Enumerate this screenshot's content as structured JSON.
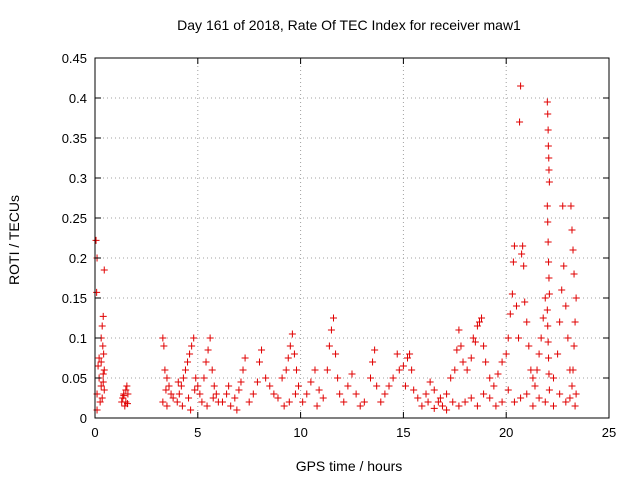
{
  "chart_data": {
    "type": "scatter",
    "title": "Day 161 of 2018, Rate Of TEC Index for receiver maw1",
    "xlabel": "GPS time / hours",
    "ylabel": "ROTI / TECUs",
    "xlim": [
      0,
      25
    ],
    "ylim": [
      0,
      0.45
    ],
    "x_ticks": [
      0,
      5,
      10,
      15,
      20,
      25
    ],
    "x_tick_labels": [
      "0",
      "5",
      "10",
      "15",
      "20",
      "25"
    ],
    "y_ticks": [
      0,
      0.05,
      0.1,
      0.15,
      0.2,
      0.25,
      0.3,
      0.35,
      0.4,
      0.45
    ],
    "y_tick_labels": [
      "0",
      "0.05",
      "0.1",
      "0.15",
      "0.2",
      "0.25",
      "0.3",
      "0.35",
      "0.4",
      "0.45"
    ],
    "grid": true,
    "marker": "+",
    "color": "#e00000",
    "series": [
      {
        "name": "ROTI",
        "points": [
          [
            0.05,
            0.222
          ],
          [
            0.1,
            0.2
          ],
          [
            0.08,
            0.157
          ],
          [
            0.45,
            0.185
          ],
          [
            0.4,
            0.127
          ],
          [
            0.35,
            0.115
          ],
          [
            0.3,
            0.1
          ],
          [
            0.38,
            0.09
          ],
          [
            0.42,
            0.08
          ],
          [
            0.3,
            0.07
          ],
          [
            0.15,
            0.065
          ],
          [
            0.2,
            0.05
          ],
          [
            0.1,
            0.03
          ],
          [
            0.3,
            0.04
          ],
          [
            0.4,
            0.055
          ],
          [
            0.45,
            0.06
          ],
          [
            0.25,
            0.02
          ],
          [
            0.1,
            0.01
          ],
          [
            0.35,
            0.025
          ],
          [
            0.45,
            0.035
          ],
          [
            0.2,
            0.075
          ],
          [
            0.4,
            0.045
          ],
          [
            1.3,
            0.02
          ],
          [
            1.35,
            0.025
          ],
          [
            1.4,
            0.03
          ],
          [
            1.45,
            0.015
          ],
          [
            1.5,
            0.035
          ],
          [
            1.55,
            0.04
          ],
          [
            1.6,
            0.03
          ],
          [
            1.5,
            0.02
          ],
          [
            1.4,
            0.028
          ],
          [
            1.58,
            0.018
          ],
          [
            3.3,
            0.1
          ],
          [
            3.35,
            0.09
          ],
          [
            3.4,
            0.06
          ],
          [
            3.5,
            0.05
          ],
          [
            3.6,
            0.04
          ],
          [
            3.7,
            0.03
          ],
          [
            3.3,
            0.02
          ],
          [
            3.5,
            0.015
          ],
          [
            3.8,
            0.025
          ],
          [
            3.45,
            0.035
          ],
          [
            4.0,
            0.02
          ],
          [
            4.1,
            0.03
          ],
          [
            4.2,
            0.04
          ],
          [
            4.3,
            0.05
          ],
          [
            4.4,
            0.06
          ],
          [
            4.5,
            0.07
          ],
          [
            4.6,
            0.08
          ],
          [
            4.7,
            0.09
          ],
          [
            4.8,
            0.1
          ],
          [
            4.9,
            0.05
          ],
          [
            5.0,
            0.04
          ],
          [
            5.1,
            0.03
          ],
          [
            5.2,
            0.02
          ],
          [
            4.25,
            0.015
          ],
          [
            4.55,
            0.025
          ],
          [
            4.85,
            0.035
          ],
          [
            4.05,
            0.045
          ],
          [
            4.65,
            0.01
          ],
          [
            5.3,
            0.05
          ],
          [
            5.4,
            0.07
          ],
          [
            5.5,
            0.085
          ],
          [
            5.6,
            0.1
          ],
          [
            5.7,
            0.06
          ],
          [
            5.8,
            0.04
          ],
          [
            5.9,
            0.03
          ],
          [
            6.0,
            0.02
          ],
          [
            5.45,
            0.015
          ],
          [
            5.75,
            0.025
          ],
          [
            6.2,
            0.02
          ],
          [
            6.4,
            0.03
          ],
          [
            6.6,
            0.015
          ],
          [
            6.8,
            0.025
          ],
          [
            7.0,
            0.035
          ],
          [
            7.2,
            0.06
          ],
          [
            7.3,
            0.075
          ],
          [
            7.1,
            0.045
          ],
          [
            6.9,
            0.01
          ],
          [
            6.5,
            0.04
          ],
          [
            7.5,
            0.02
          ],
          [
            7.7,
            0.03
          ],
          [
            7.9,
            0.045
          ],
          [
            8.1,
            0.085
          ],
          [
            8.0,
            0.07
          ],
          [
            8.3,
            0.05
          ],
          [
            8.5,
            0.04
          ],
          [
            8.7,
            0.03
          ],
          [
            8.9,
            0.025
          ],
          [
            9.1,
            0.05
          ],
          [
            9.3,
            0.06
          ],
          [
            9.4,
            0.075
          ],
          [
            9.5,
            0.09
          ],
          [
            9.6,
            0.105
          ],
          [
            9.7,
            0.08
          ],
          [
            9.8,
            0.06
          ],
          [
            9.9,
            0.04
          ],
          [
            9.45,
            0.02
          ],
          [
            9.75,
            0.03
          ],
          [
            9.2,
            0.015
          ],
          [
            10.1,
            0.02
          ],
          [
            10.3,
            0.03
          ],
          [
            10.5,
            0.045
          ],
          [
            10.7,
            0.06
          ],
          [
            10.9,
            0.035
          ],
          [
            11.1,
            0.025
          ],
          [
            11.3,
            0.06
          ],
          [
            11.4,
            0.09
          ],
          [
            11.5,
            0.11
          ],
          [
            11.6,
            0.125
          ],
          [
            11.7,
            0.08
          ],
          [
            11.8,
            0.05
          ],
          [
            11.9,
            0.03
          ],
          [
            12.1,
            0.02
          ],
          [
            12.3,
            0.04
          ],
          [
            12.5,
            0.055
          ],
          [
            12.7,
            0.03
          ],
          [
            12.9,
            0.015
          ],
          [
            13.1,
            0.02
          ],
          [
            10.8,
            0.015
          ],
          [
            13.4,
            0.05
          ],
          [
            13.5,
            0.07
          ],
          [
            13.6,
            0.085
          ],
          [
            13.7,
            0.04
          ],
          [
            13.9,
            0.02
          ],
          [
            14.1,
            0.03
          ],
          [
            14.3,
            0.04
          ],
          [
            14.5,
            0.05
          ],
          [
            14.7,
            0.08
          ],
          [
            14.8,
            0.06
          ],
          [
            15.0,
            0.065
          ],
          [
            15.1,
            0.04
          ],
          [
            15.2,
            0.075
          ],
          [
            15.3,
            0.08
          ],
          [
            15.4,
            0.06
          ],
          [
            15.5,
            0.035
          ],
          [
            15.7,
            0.025
          ],
          [
            15.9,
            0.015
          ],
          [
            16.1,
            0.03
          ],
          [
            16.3,
            0.045
          ],
          [
            16.5,
            0.035
          ],
          [
            16.7,
            0.02
          ],
          [
            16.9,
            0.015
          ],
          [
            17.1,
            0.03
          ],
          [
            17.3,
            0.05
          ],
          [
            17.5,
            0.06
          ],
          [
            17.6,
            0.085
          ],
          [
            17.7,
            0.11
          ],
          [
            17.8,
            0.09
          ],
          [
            17.9,
            0.07
          ],
          [
            18.1,
            0.06
          ],
          [
            18.3,
            0.075
          ],
          [
            18.4,
            0.1
          ],
          [
            18.5,
            0.095
          ],
          [
            18.6,
            0.115
          ],
          [
            18.7,
            0.12
          ],
          [
            18.8,
            0.125
          ],
          [
            18.9,
            0.09
          ],
          [
            19.0,
            0.07
          ],
          [
            19.2,
            0.05
          ],
          [
            19.4,
            0.04
          ],
          [
            19.6,
            0.055
          ],
          [
            19.8,
            0.07
          ],
          [
            20.0,
            0.08
          ],
          [
            20.1,
            0.1
          ],
          [
            20.2,
            0.13
          ],
          [
            20.3,
            0.155
          ],
          [
            20.35,
            0.195
          ],
          [
            20.4,
            0.215
          ],
          [
            20.5,
            0.14
          ],
          [
            20.6,
            0.1
          ],
          [
            20.65,
            0.37
          ],
          [
            20.7,
            0.415
          ],
          [
            20.75,
            0.205
          ],
          [
            20.8,
            0.215
          ],
          [
            20.85,
            0.19
          ],
          [
            20.9,
            0.145
          ],
          [
            21.0,
            0.12
          ],
          [
            21.1,
            0.09
          ],
          [
            21.2,
            0.06
          ],
          [
            21.3,
            0.05
          ],
          [
            21.4,
            0.04
          ],
          [
            21.5,
            0.06
          ],
          [
            21.6,
            0.08
          ],
          [
            21.7,
            0.1
          ],
          [
            21.8,
            0.125
          ],
          [
            21.9,
            0.15
          ],
          [
            22.0,
            0.395
          ],
          [
            22.02,
            0.38
          ],
          [
            22.04,
            0.36
          ],
          [
            22.05,
            0.34
          ],
          [
            22.07,
            0.325
          ],
          [
            22.08,
            0.31
          ],
          [
            22.1,
            0.295
          ],
          [
            22.0,
            0.265
          ],
          [
            22.02,
            0.245
          ],
          [
            22.04,
            0.22
          ],
          [
            22.06,
            0.195
          ],
          [
            22.08,
            0.175
          ],
          [
            22.1,
            0.155
          ],
          [
            22.0,
            0.135
          ],
          [
            22.02,
            0.115
          ],
          [
            22.04,
            0.095
          ],
          [
            22.06,
            0.075
          ],
          [
            22.08,
            0.055
          ],
          [
            22.1,
            0.035
          ],
          [
            22.3,
            0.05
          ],
          [
            22.5,
            0.08
          ],
          [
            22.6,
            0.12
          ],
          [
            22.7,
            0.16
          ],
          [
            22.75,
            0.265
          ],
          [
            22.8,
            0.19
          ],
          [
            22.9,
            0.14
          ],
          [
            23.0,
            0.1
          ],
          [
            23.1,
            0.06
          ],
          [
            23.15,
            0.265
          ],
          [
            23.2,
            0.235
          ],
          [
            23.25,
            0.21
          ],
          [
            23.3,
            0.18
          ],
          [
            23.4,
            0.15
          ],
          [
            23.35,
            0.12
          ],
          [
            23.3,
            0.09
          ],
          [
            23.25,
            0.06
          ],
          [
            23.2,
            0.04
          ],
          [
            23.4,
            0.03
          ],
          [
            23.35,
            0.015
          ],
          [
            23.1,
            0.025
          ],
          [
            22.9,
            0.02
          ],
          [
            22.6,
            0.03
          ],
          [
            22.3,
            0.015
          ],
          [
            21.9,
            0.02
          ],
          [
            21.6,
            0.025
          ],
          [
            21.3,
            0.015
          ],
          [
            21.0,
            0.03
          ],
          [
            20.7,
            0.025
          ],
          [
            20.4,
            0.02
          ],
          [
            20.1,
            0.035
          ],
          [
            19.8,
            0.02
          ],
          [
            19.5,
            0.015
          ],
          [
            19.2,
            0.025
          ],
          [
            18.9,
            0.03
          ],
          [
            18.6,
            0.015
          ],
          [
            18.3,
            0.025
          ],
          [
            18.0,
            0.02
          ],
          [
            17.7,
            0.015
          ],
          [
            17.4,
            0.02
          ],
          [
            17.1,
            0.01
          ],
          [
            16.8,
            0.025
          ],
          [
            16.5,
            0.012
          ],
          [
            16.2,
            0.02
          ]
        ]
      }
    ]
  }
}
